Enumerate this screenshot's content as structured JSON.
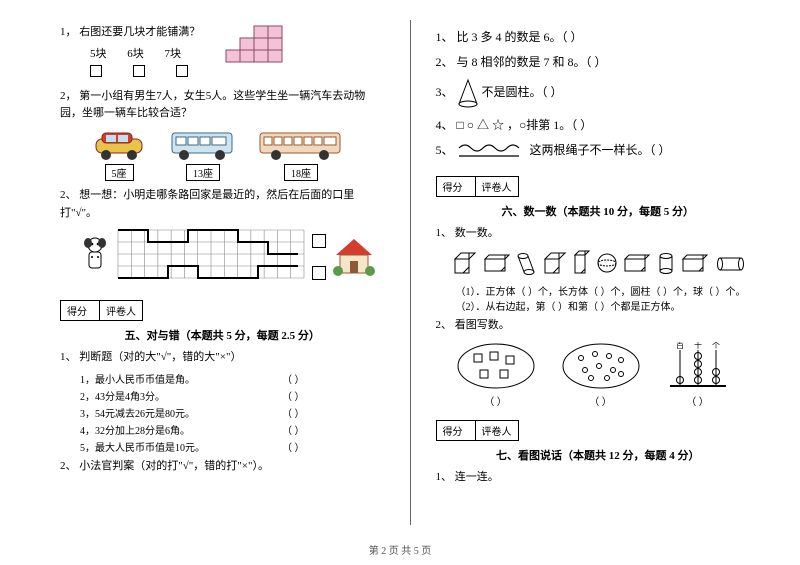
{
  "left": {
    "q1": {
      "num": "1，",
      "text": "右图还要几块才能铺满？",
      "opts": [
        "5块",
        "6块",
        "7块"
      ],
      "grid": {
        "rows": 3,
        "cols": 5,
        "fill": "#f4c2d7",
        "stroke": "#8a4a6a",
        "filled": [
          [
            0,
            3
          ],
          [
            0,
            4
          ],
          [
            1,
            2
          ],
          [
            1,
            3
          ],
          [
            1,
            4
          ],
          [
            2,
            1
          ],
          [
            2,
            2
          ],
          [
            2,
            3
          ],
          [
            2,
            4
          ]
        ]
      }
    },
    "q2": {
      "num": "2，",
      "text": "第一小组有男生7人，女生5人。这些学生坐一辆汽车去动物园，坐哪一辆车比较合适？",
      "cars": [
        {
          "label": "5座",
          "color": "#d43c2e"
        },
        {
          "label": "13座",
          "color": "#6aa7d6"
        },
        {
          "label": "18座",
          "color": "#d8833a"
        }
      ]
    },
    "q3": {
      "num": "2、",
      "text": "想一想：小明走哪条路回家是最近的，然后在后面的口里打\"√\"。",
      "path_grid": {
        "rows": 4,
        "cols": 14,
        "stroke": "#888"
      }
    },
    "section5": {
      "score_labels": [
        "得分",
        "评卷人"
      ],
      "title": "五、对与错（本题共 5 分，每题 2.5 分）",
      "q1": {
        "num": "1、",
        "text": "判断题（对的大\"√\"，错的大\"×\"）",
        "items": [
          "1，最小人民币币值是角。",
          "2，43分是4角3分。",
          "3，54元减去26元是80元。",
          "4，32分加上28分是6角。",
          "5，最大人民币币值是10元。"
        ]
      },
      "q2": {
        "num": "2、",
        "text": "小法官判案（对的打\"√\"，错的打\"×\"）。"
      }
    }
  },
  "right": {
    "r1": {
      "num": "1、",
      "text": "比 3 多 4 的数是 6。（        ）"
    },
    "r2": {
      "num": "2、",
      "text": "与 8 相邻的数是 7 和 8。（        ）"
    },
    "r3": {
      "num": "3、",
      "text": "不是圆柱。（        ）"
    },
    "r4": {
      "num": "4、",
      "pre": "□ ○ △ ☆ ，○排第 1。（        ）"
    },
    "r5": {
      "num": "5、",
      "text": "这两根绳子不一样长。（        ）"
    },
    "section6": {
      "score_labels": [
        "得分",
        "评卷人"
      ],
      "title": "六、数一数（本题共 10 分，每题 5 分）",
      "q1": {
        "num": "1、",
        "text": "数一数。"
      },
      "line1": "（1）．正方体（   ）个，长方体（   ）个，圆柱（   ）个，球（   ）个。",
      "line2": "（2）．从右边起，第（   ）和第（   ）个都是正方体。",
      "q2": {
        "num": "2、",
        "text": "看图写数。"
      },
      "paren": "（        ）"
    },
    "section7": {
      "score_labels": [
        "得分",
        "评卷人"
      ],
      "title": "七、看图说话（本题共 12 分，每题 4 分）",
      "q1": {
        "num": "1、",
        "text": "连一连。"
      }
    }
  },
  "footer": "第 2 页 共 5 页",
  "colors": {
    "ink": "#000000",
    "grid": "#888888"
  }
}
